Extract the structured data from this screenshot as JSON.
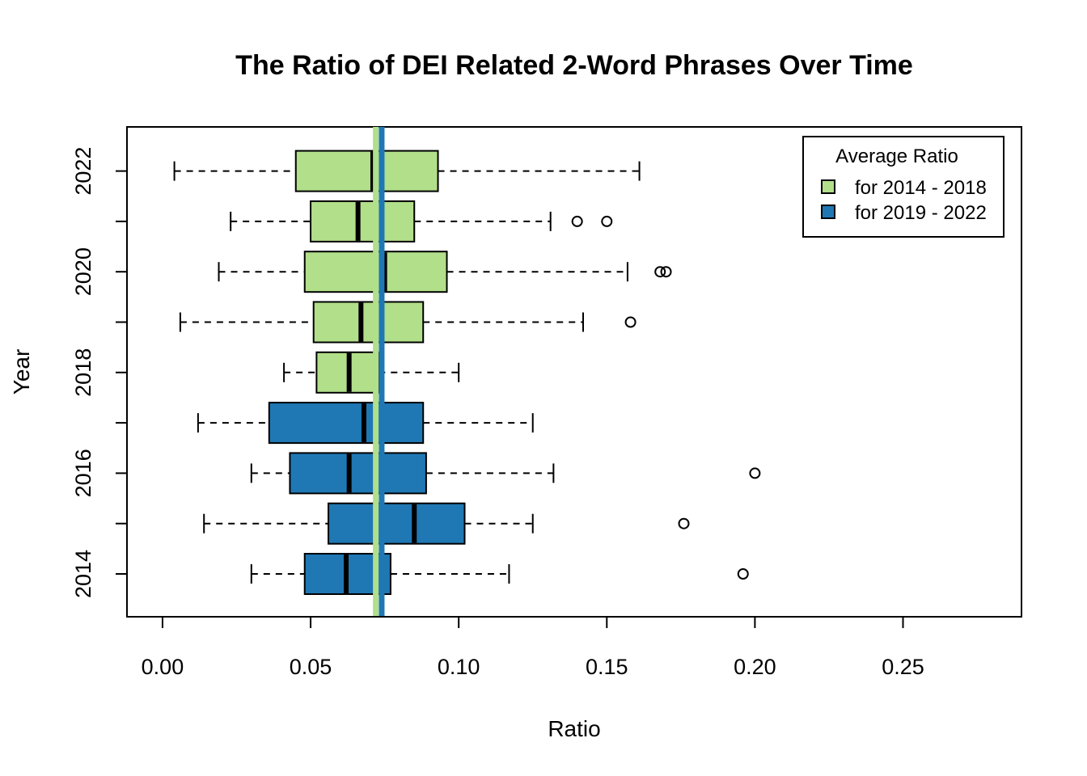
{
  "chart_data": {
    "type": "boxplot",
    "orientation": "horizontal",
    "title": "The Ratio of DEI Related 2-Word Phrases Over Time",
    "xlabel": "Ratio",
    "ylabel": "Year",
    "xlim": [
      -0.012,
      0.29
    ],
    "x_ticks": [
      0,
      0.05,
      0.1,
      0.15,
      0.2,
      0.25
    ],
    "x_tick_labels": [
      "0.00",
      "0.05",
      "0.10",
      "0.15",
      "0.20",
      "0.25"
    ],
    "y_tick_labels": [
      "2014",
      "2016",
      "2018",
      "2020",
      "2022"
    ],
    "y_tick_years": [
      2014,
      2016,
      2018,
      2020,
      2022
    ],
    "grid": false,
    "legend": {
      "title": "Average Ratio",
      "position": "top-right",
      "entries": [
        {
          "label": "for 2014 - 2018",
          "color": "#b2df8a"
        },
        {
          "label": "for 2019 - 2022",
          "color": "#1f78b4"
        }
      ]
    },
    "colors": {
      "green": "#b2df8a",
      "blue": "#1f78b4"
    },
    "boxes": [
      {
        "year": 2014,
        "color": "#1f78b4",
        "whisker_low": 0.03,
        "q1": 0.048,
        "median": 0.062,
        "q3": 0.077,
        "whisker_high": 0.117,
        "outliers": [
          0.196
        ]
      },
      {
        "year": 2015,
        "color": "#1f78b4",
        "whisker_low": 0.014,
        "q1": 0.056,
        "median": 0.085,
        "q3": 0.102,
        "whisker_high": 0.125,
        "outliers": [
          0.176
        ]
      },
      {
        "year": 2016,
        "color": "#1f78b4",
        "whisker_low": 0.03,
        "q1": 0.043,
        "median": 0.063,
        "q3": 0.089,
        "whisker_high": 0.132,
        "outliers": [
          0.2
        ]
      },
      {
        "year": 2017,
        "color": "#1f78b4",
        "whisker_low": 0.012,
        "q1": 0.036,
        "median": 0.068,
        "q3": 0.088,
        "whisker_high": 0.125,
        "outliers": []
      },
      {
        "year": 2018,
        "color": "#b2df8a",
        "whisker_low": 0.041,
        "q1": 0.052,
        "median": 0.063,
        "q3": 0.073,
        "whisker_high": 0.1,
        "outliers": []
      },
      {
        "year": 2019,
        "color": "#b2df8a",
        "whisker_low": 0.006,
        "q1": 0.051,
        "median": 0.067,
        "q3": 0.088,
        "whisker_high": 0.142,
        "outliers": [
          0.158
        ]
      },
      {
        "year": 2020,
        "color": "#b2df8a",
        "whisker_low": 0.019,
        "q1": 0.048,
        "median": 0.075,
        "q3": 0.096,
        "whisker_high": 0.157,
        "outliers": [
          0.168,
          0.17
        ]
      },
      {
        "year": 2021,
        "color": "#b2df8a",
        "whisker_low": 0.023,
        "q1": 0.05,
        "median": 0.066,
        "q3": 0.085,
        "whisker_high": 0.131,
        "outliers": [
          0.14,
          0.15
        ]
      },
      {
        "year": 2022,
        "color": "#b2df8a",
        "whisker_low": 0.004,
        "q1": 0.045,
        "median": 0.071,
        "q3": 0.093,
        "whisker_high": 0.161,
        "outliers": []
      }
    ],
    "reference_lines": [
      {
        "legend_label": "for 2014 - 2018",
        "value": 0.072,
        "color": "#b2df8a"
      },
      {
        "legend_label": "for 2019 - 2022",
        "value": 0.074,
        "color": "#1f78b4"
      }
    ]
  }
}
